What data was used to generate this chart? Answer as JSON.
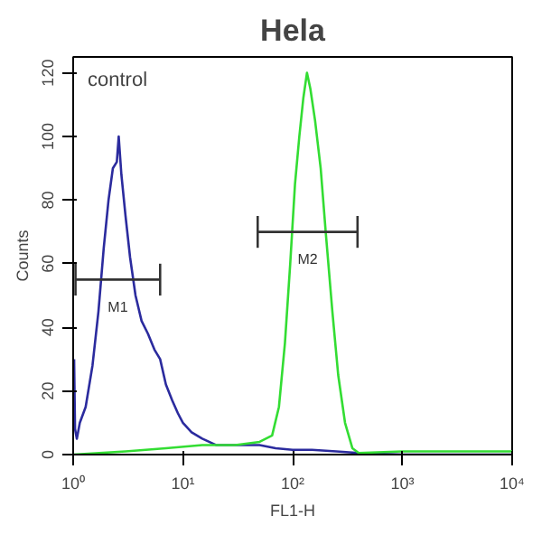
{
  "chart_data": {
    "type": "line",
    "title": "Hela",
    "xlabel": "FL1-H",
    "ylabel": "Counts",
    "log": "x",
    "xlim": [
      1,
      10000
    ],
    "xticks": [
      {
        "value": 1,
        "label": "10⁰"
      },
      {
        "value": 10,
        "label": "10¹"
      },
      {
        "value": 100,
        "label": "10²"
      },
      {
        "value": 1000,
        "label": "10³"
      },
      {
        "value": 10000,
        "label": "10⁴"
      }
    ],
    "ylim": [
      0,
      125
    ],
    "yticks": [
      0,
      20,
      40,
      60,
      80,
      100,
      120
    ],
    "grid": false,
    "marker": "none",
    "line_style": "solid",
    "annotations": [
      "control"
    ],
    "series": [
      {
        "color": "#2b2b9e",
        "x": [
          1.02,
          1.04,
          1.08,
          1.15,
          1.3,
          1.5,
          1.7,
          1.9,
          2.1,
          2.3,
          2.5,
          2.6,
          2.75,
          3.0,
          3.3,
          3.7,
          4.2,
          4.8,
          5.5,
          6.2,
          7,
          8,
          9,
          10,
          12,
          15,
          20,
          30,
          50,
          70,
          100,
          150,
          250,
          400,
          1000,
          10000
        ],
        "values": [
          30,
          8,
          5,
          10,
          15,
          28,
          45,
          65,
          80,
          90,
          92,
          100,
          88,
          75,
          62,
          50,
          42,
          38,
          33,
          30,
          22,
          17,
          13,
          10,
          7,
          5,
          3,
          3,
          3,
          2,
          1.5,
          1.5,
          1,
          0.5,
          0,
          0
        ]
      },
      {
        "color": "#33dd33",
        "x": [
          1,
          3,
          7,
          15,
          30,
          50,
          65,
          75,
          85,
          95,
          105,
          115,
          125,
          135,
          145,
          160,
          180,
          200,
          230,
          260,
          300,
          350,
          400,
          1000,
          10000
        ],
        "values": [
          0,
          1,
          2,
          3,
          3,
          4,
          6,
          15,
          35,
          60,
          85,
          100,
          112,
          120,
          115,
          105,
          90,
          70,
          45,
          25,
          10,
          2,
          0.5,
          1,
          1
        ]
      },
      {
        "name": "M1",
        "color": "#333333",
        "x": [
          1.05,
          6.2
        ],
        "values": [
          55,
          55
        ],
        "errors": [
          5,
          5
        ]
      },
      {
        "name": "M2",
        "color": "#333333",
        "x": [
          48,
          390
        ],
        "values": [
          70,
          70
        ],
        "errors": [
          5,
          5
        ]
      }
    ]
  }
}
